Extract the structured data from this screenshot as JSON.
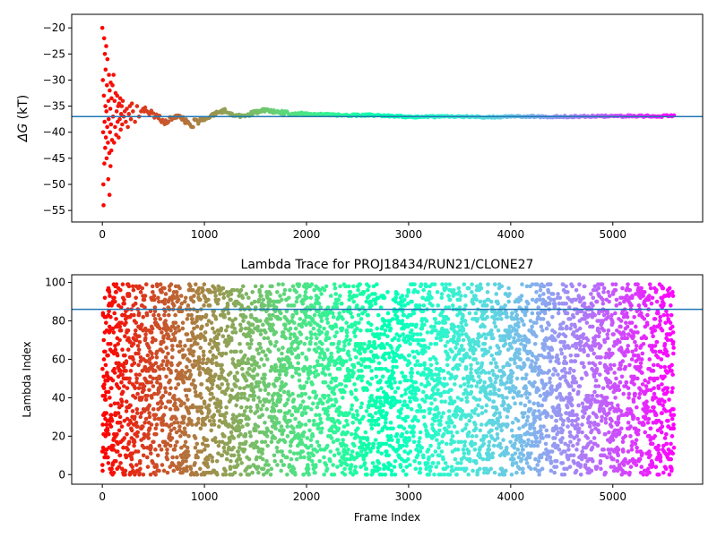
{
  "chart_data": [
    {
      "type": "scatter",
      "title": "",
      "xlabel": "",
      "ylabel": "ΔG (kT)",
      "ylabel_symbol": "ΔG",
      "ylabel_unit": " (kT)",
      "xlim": [
        -300,
        5880
      ],
      "ylim": [
        -57.2,
        -17.4
      ],
      "xticks": [
        0,
        1000,
        2000,
        3000,
        4000,
        5000
      ],
      "yticks": [
        -55,
        -50,
        -45,
        -40,
        -35,
        -30,
        -25,
        -20
      ],
      "hline": {
        "y": -37,
        "color": "#1f77b4"
      },
      "colormap": "rainbow",
      "color_reversed": true,
      "n_frames": 5600,
      "frame_step": 10,
      "early_points": [
        [
          0,
          -20.0
        ],
        [
          5,
          -30.0
        ],
        [
          8,
          -40.0
        ],
        [
          10,
          -50.0
        ],
        [
          12,
          -54.0
        ],
        [
          15,
          -33.0
        ],
        [
          18,
          -22.0
        ],
        [
          20,
          -46.0
        ],
        [
          22,
          -38.0
        ],
        [
          25,
          -25.0
        ],
        [
          28,
          -43.0
        ],
        [
          30,
          -35.0
        ],
        [
          32,
          -28.0
        ],
        [
          35,
          -41.0
        ],
        [
          38,
          -23.5
        ],
        [
          40,
          -36.0
        ],
        [
          42,
          -45.0
        ],
        [
          45,
          -31.0
        ],
        [
          48,
          -39.0
        ],
        [
          50,
          -26.0
        ],
        [
          55,
          -42.0
        ],
        [
          58,
          -49.0
        ],
        [
          60,
          -34.0
        ],
        [
          62,
          -37.5
        ],
        [
          65,
          -29.0
        ],
        [
          68,
          -44.0
        ],
        [
          70,
          -52.0
        ],
        [
          72,
          -32.0
        ],
        [
          75,
          -40.0
        ],
        [
          78,
          -35.5
        ],
        [
          80,
          -46.5
        ],
        [
          82,
          -30.5
        ],
        [
          85,
          -38.5
        ],
        [
          88,
          -43.5
        ],
        [
          90,
          -33.5
        ],
        [
          95,
          -41.5
        ],
        [
          100,
          -31.0
        ],
        [
          105,
          -37.0
        ],
        [
          110,
          -29.0
        ],
        [
          115,
          -42.0
        ],
        [
          120,
          -34.0
        ],
        [
          125,
          -39.0
        ],
        [
          130,
          -32.5
        ],
        [
          135,
          -40.5
        ],
        [
          140,
          -36.0
        ],
        [
          145,
          -33.0
        ],
        [
          150,
          -38.0
        ],
        [
          155,
          -35.0
        ],
        [
          160,
          -41.0
        ],
        [
          165,
          -34.5
        ],
        [
          170,
          -37.5
        ],
        [
          175,
          -33.5
        ],
        [
          180,
          -39.5
        ],
        [
          185,
          -36.5
        ],
        [
          190,
          -35.0
        ],
        [
          195,
          -38.5
        ],
        [
          200,
          -34.0
        ],
        [
          210,
          -37.0
        ],
        [
          220,
          -36.0
        ],
        [
          230,
          -38.0
        ],
        [
          240,
          -35.5
        ],
        [
          250,
          -39.0
        ],
        [
          260,
          -36.5
        ],
        [
          270,
          -35.0
        ],
        [
          280,
          -37.5
        ],
        [
          290,
          -34.5
        ],
        [
          300,
          -36.0
        ],
        [
          320,
          -38.0
        ],
        [
          340,
          -35.0
        ],
        [
          360,
          -37.0
        ],
        [
          380,
          -36.0
        ],
        [
          400,
          -35.5
        ]
      ],
      "trend": [
        [
          400,
          -35.5
        ],
        [
          500,
          -36.5
        ],
        [
          600,
          -38.0
        ],
        [
          700,
          -37.0
        ],
        [
          800,
          -37.5
        ],
        [
          880,
          -39.0
        ],
        [
          900,
          -38.0
        ],
        [
          1000,
          -37.5
        ],
        [
          1100,
          -36.5
        ],
        [
          1200,
          -35.8
        ],
        [
          1300,
          -37.0
        ],
        [
          1400,
          -36.8
        ],
        [
          1500,
          -36.2
        ],
        [
          1600,
          -35.8
        ],
        [
          1700,
          -36.0
        ],
        [
          1800,
          -36.3
        ],
        [
          1900,
          -36.4
        ],
        [
          2000,
          -36.5
        ],
        [
          2200,
          -36.6
        ],
        [
          2400,
          -36.8
        ],
        [
          2600,
          -36.7
        ],
        [
          2800,
          -36.9
        ],
        [
          3000,
          -37.1
        ],
        [
          3200,
          -37.0
        ],
        [
          3400,
          -37.0
        ],
        [
          3600,
          -37.0
        ],
        [
          3800,
          -37.1
        ],
        [
          4000,
          -37.0
        ],
        [
          4500,
          -37.0
        ],
        [
          5000,
          -36.9
        ],
        [
          5600,
          -36.9
        ]
      ]
    },
    {
      "type": "scatter",
      "title": "Lambda Trace for PROJ18434/RUN21/CLONE27",
      "xlabel": "Frame Index",
      "ylabel": "Lambda Index",
      "xlim": [
        -300,
        5880
      ],
      "ylim": [
        -5,
        104
      ],
      "xticks": [
        0,
        1000,
        2000,
        3000,
        4000,
        5000
      ],
      "yticks": [
        0,
        20,
        40,
        60,
        80,
        100
      ],
      "hline": {
        "y": 86,
        "color": "#1f77b4"
      },
      "colormap": "rainbow",
      "color_reversed": true,
      "n_frames": 5600,
      "lambda_range": [
        0,
        99
      ],
      "distribution": "uniform"
    }
  ]
}
